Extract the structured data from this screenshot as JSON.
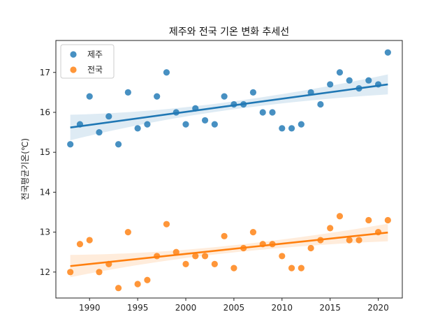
{
  "chart_data": {
    "type": "scatter",
    "title": "제주와 전국 기온 변화 추세선",
    "xlabel": "",
    "ylabel": "전국평균기온(℃)",
    "xlim": [
      1986.5,
      2022.5
    ],
    "ylim": [
      11.35,
      17.8
    ],
    "x_ticks": [
      1990,
      1995,
      2000,
      2005,
      2010,
      2015,
      2020
    ],
    "y_ticks": [
      12,
      13,
      14,
      15,
      16,
      17
    ],
    "grid": false,
    "legend_position": "top-left",
    "regression_ci_shown": true,
    "x": [
      1988,
      1989,
      1990,
      1991,
      1992,
      1993,
      1994,
      1995,
      1996,
      1997,
      1998,
      1999,
      2000,
      2001,
      2002,
      2003,
      2004,
      2005,
      2006,
      2007,
      2008,
      2009,
      2010,
      2011,
      2012,
      2013,
      2014,
      2015,
      2016,
      2017,
      2018,
      2019,
      2020,
      2021
    ],
    "series": [
      {
        "name": "제주",
        "color": "#1f77b4",
        "values": [
          15.2,
          15.7,
          16.4,
          15.5,
          15.9,
          15.2,
          16.5,
          15.6,
          15.7,
          16.4,
          17.0,
          16.0,
          15.7,
          16.1,
          15.8,
          15.7,
          16.4,
          16.2,
          16.2,
          16.5,
          16.0,
          16.0,
          15.6,
          15.6,
          15.7,
          16.5,
          16.2,
          16.7,
          17.0,
          16.8,
          16.6,
          16.8,
          16.7,
          17.5
        ],
        "trend": {
          "start": 15.62,
          "end": 16.7
        },
        "ci_halfwidth": {
          "start": 0.32,
          "mid": 0.1,
          "end": 0.25
        }
      },
      {
        "name": "전국",
        "color": "#ff7f0e",
        "values": [
          12.0,
          12.7,
          12.8,
          12.0,
          12.2,
          11.6,
          13.0,
          11.7,
          11.8,
          12.4,
          13.2,
          12.5,
          12.2,
          12.4,
          12.4,
          12.2,
          12.9,
          12.1,
          12.6,
          13.0,
          12.7,
          12.7,
          12.4,
          12.1,
          12.1,
          12.6,
          12.8,
          13.1,
          13.4,
          12.8,
          12.8,
          13.3,
          13.0,
          13.3
        ],
        "trend": {
          "start": 12.15,
          "end": 12.99
        },
        "ci_halfwidth": {
          "start": 0.28,
          "mid": 0.09,
          "end": 0.22
        }
      }
    ]
  }
}
